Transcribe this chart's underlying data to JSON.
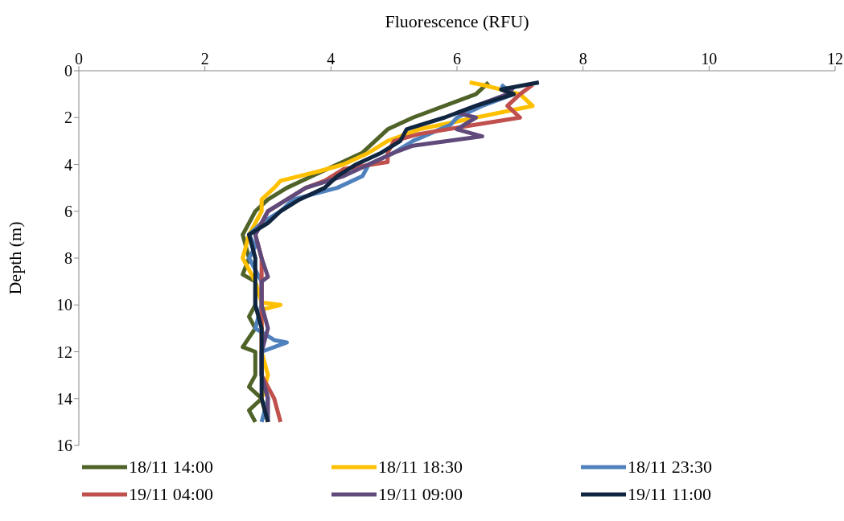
{
  "chart_data": {
    "type": "line",
    "xlabel": "Fluorescence (RFU)",
    "ylabel": "Depth (m)",
    "xlim": [
      0,
      12
    ],
    "xticks": [
      0,
      2,
      4,
      6,
      8,
      10,
      12
    ],
    "ylim": [
      16,
      0
    ],
    "yticks": [
      0,
      2,
      4,
      6,
      8,
      10,
      12,
      14,
      16
    ],
    "grid": false,
    "legend": "bottom",
    "marker": "none",
    "line_style": "solid",
    "series": [
      {
        "name": "18/11 14:00",
        "color": "#4f6228",
        "x": [
          6.5,
          6.3,
          5.3,
          4.9,
          4.7,
          4.5,
          4.1,
          3.7,
          3.3,
          3.0,
          2.8,
          2.7,
          2.6,
          2.7,
          2.6,
          2.8,
          2.8,
          2.7,
          2.8,
          2.6,
          2.8,
          2.8,
          2.7,
          2.9,
          2.7,
          2.8
        ],
        "values": [
          0.5,
          1,
          2,
          2.5,
          3,
          3.5,
          4,
          4.5,
          5,
          5.5,
          6,
          6.5,
          7,
          8,
          8.7,
          9,
          10,
          10.5,
          11,
          11.8,
          12,
          13,
          13.5,
          14,
          14.5,
          15
        ]
      },
      {
        "name": "18/11 18:30",
        "color": "#ffc000",
        "x": [
          6.2,
          6.4,
          7.0,
          7.2,
          6.3,
          5.4,
          4.9,
          4.6,
          4.2,
          3.8,
          3.2,
          3.1,
          2.9,
          2.9,
          2.7,
          2.6,
          2.8,
          2.9,
          3.2,
          2.9,
          2.9,
          2.9,
          3.0,
          2.9,
          3.0
        ],
        "values": [
          0.5,
          0.6,
          1,
          1.5,
          2,
          2.5,
          3,
          3.5,
          4,
          4.3,
          4.7,
          5,
          5.5,
          6,
          7,
          8,
          9,
          9.9,
          10,
          10.2,
          11,
          12,
          13,
          14,
          15
        ]
      },
      {
        "name": "18/11 23:30",
        "color": "#4f81bd",
        "x": [
          6.7,
          6.9,
          6.4,
          6.0,
          5.9,
          5.3,
          5.0,
          4.6,
          4.5,
          4.1,
          3.4,
          3.2,
          2.9,
          2.7,
          2.8,
          2.7,
          2.9,
          2.9,
          2.8,
          3.1,
          3.3,
          2.9,
          2.9,
          3.0,
          2.9
        ],
        "values": [
          0.6,
          1,
          1.5,
          2,
          2.3,
          3,
          3.5,
          4,
          4.5,
          5,
          5.5,
          6,
          6.5,
          7,
          7.5,
          8,
          9,
          10,
          11,
          11.5,
          11.6,
          12,
          13,
          14,
          15
        ]
      },
      {
        "name": "19/11 04:00",
        "color": "#c0504d",
        "x": [
          7.2,
          7.0,
          6.8,
          7.0,
          6.3,
          5.4,
          5.0,
          4.9,
          4.9,
          4.2,
          3.9,
          3.6,
          3.3,
          3.0,
          2.8,
          2.9,
          2.9,
          2.9,
          2.9,
          2.9,
          2.9,
          3.1,
          3.2
        ],
        "values": [
          0.6,
          1,
          1.5,
          2,
          2.3,
          2.7,
          3,
          3.5,
          3.9,
          4.2,
          4.7,
          5,
          5.5,
          6,
          7,
          8,
          9,
          10,
          11,
          12,
          13,
          14,
          15
        ]
      },
      {
        "name": "19/11 09:00",
        "color": "#604a7b",
        "x": [
          6.9,
          6.8,
          6.3,
          6.0,
          6.3,
          6.0,
          6.4,
          5.3,
          5.0,
          4.6,
          4.2,
          3.6,
          3.3,
          3.0,
          2.8,
          2.9,
          3.0,
          2.9,
          2.9,
          3.0,
          2.9,
          2.9,
          3.0,
          3.0
        ],
        "values": [
          0.7,
          1,
          1.5,
          1.8,
          2,
          2.5,
          2.8,
          3.2,
          3.5,
          4,
          4.5,
          5,
          5.5,
          6,
          7,
          8,
          8.8,
          9,
          10,
          11,
          12,
          13,
          14,
          15
        ]
      },
      {
        "name": "19/11 11:00",
        "color": "#10253f",
        "x": [
          7.3,
          6.7,
          6.9,
          6.3,
          5.8,
          5.2,
          5.1,
          4.8,
          4.4,
          4.1,
          3.9,
          3.5,
          3.2,
          3.0,
          2.7,
          2.8,
          2.8,
          2.8,
          2.9,
          2.9,
          2.9,
          2.9,
          3.0
        ],
        "values": [
          0.5,
          0.8,
          1,
          1.5,
          2,
          2.5,
          3,
          3.5,
          4,
          4.5,
          5,
          5.5,
          6,
          6.5,
          7,
          8,
          9,
          10,
          11,
          12,
          13,
          14,
          15
        ]
      }
    ]
  }
}
